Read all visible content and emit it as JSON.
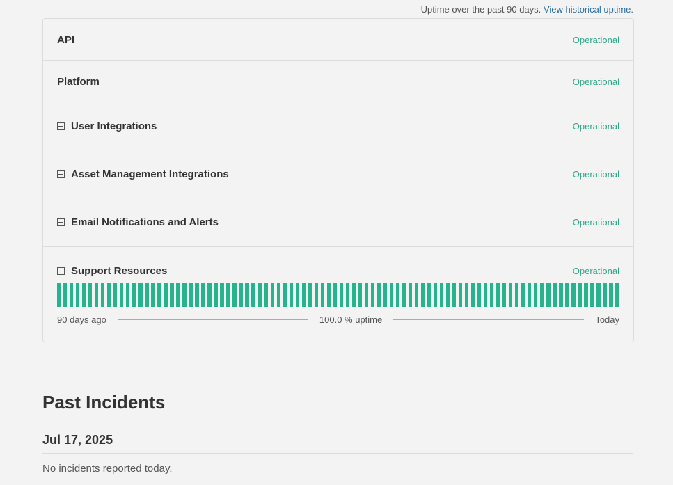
{
  "uptime_note": {
    "text": "Uptime over the past 90 days.",
    "link": "View historical uptime."
  },
  "components": [
    {
      "name": "API",
      "status": "Operational",
      "expandable": false
    },
    {
      "name": "Platform",
      "status": "Operational",
      "expandable": false
    },
    {
      "name": "User Integrations",
      "status": "Operational",
      "expandable": true
    },
    {
      "name": "Asset Management Integrations",
      "status": "Operational",
      "expandable": true
    },
    {
      "name": "Email Notifications and Alerts",
      "status": "Operational",
      "expandable": true
    },
    {
      "name": "Support Resources",
      "status": "Operational",
      "expandable": true
    }
  ],
  "uptime": {
    "days": 90,
    "start_label": "90 days ago",
    "uptime_label": "100.0 % uptime",
    "end_label": "Today",
    "bar_color": "#26b48f"
  },
  "colors": {
    "status_operational": "#2fa987",
    "link": "#2b6ea3"
  },
  "past_incidents": {
    "title": "Past Incidents",
    "entries": [
      {
        "date": "Jul 17, 2025",
        "text": "No incidents reported today."
      }
    ]
  }
}
